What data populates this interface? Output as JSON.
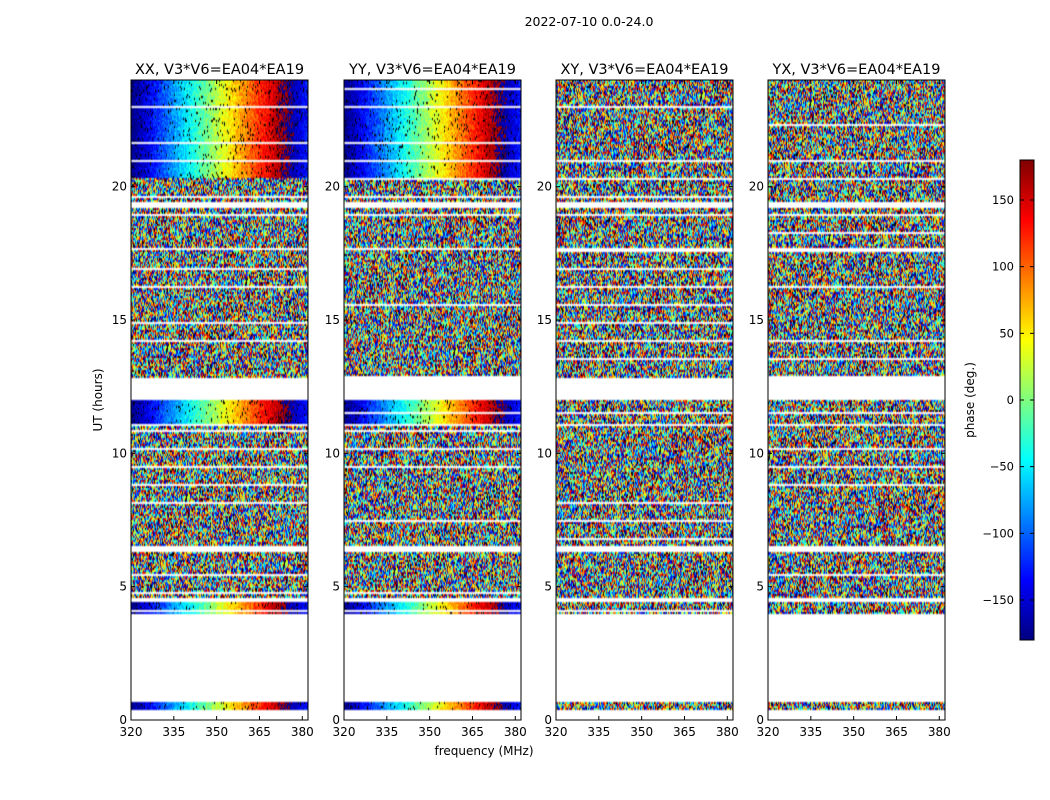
{
  "figure_title": "2022-07-10 0.0-24.0",
  "chart_data": {
    "type": "heatmap",
    "suptitle": "2022-07-10 0.0-24.0",
    "xlabel": "frequency (MHz)",
    "ylabel": "UT (hours)",
    "xlim": [
      320,
      382
    ],
    "ylim": [
      0,
      24
    ],
    "x_ticks": [
      320,
      335,
      350,
      365,
      380
    ],
    "y_ticks": [
      0,
      5,
      10,
      15,
      20
    ],
    "colorbar": {
      "label": "phase (deg.)",
      "vmin": -180,
      "vmax": 180,
      "ticks": [
        -150,
        -100,
        -50,
        0,
        50,
        100,
        150
      ],
      "tick_labels": [
        "−150",
        "−100",
        "−50",
        "0",
        "50",
        "100",
        "150"
      ],
      "colormap": [
        "#00007f",
        "#0000ff",
        "#007fff",
        "#00ffff",
        "#7fff7f",
        "#ffff00",
        "#ff7f00",
        "#ff0000",
        "#7f0000"
      ]
    },
    "data_hour_blocks": [
      [
        0.4,
        0.7
      ],
      [
        4.0,
        4.4
      ],
      [
        4.6,
        6.3
      ],
      [
        6.5,
        11.0
      ],
      [
        11.1,
        12.0
      ],
      [
        12.8,
        17.6
      ],
      [
        17.7,
        19.2
      ],
      [
        19.4,
        20.9
      ],
      [
        21.0,
        24.0
      ]
    ],
    "panels": [
      {
        "title": "XX, V3*V6=EA04*EA19",
        "polarization": "XX",
        "structured": true
      },
      {
        "title": "YY, V3*V6=EA04*EA19",
        "polarization": "YY",
        "structured": true
      },
      {
        "title": "XY, V3*V6=EA04*EA19",
        "polarization": "XY",
        "structured": false
      },
      {
        "title": "YX, V3*V6=EA04*EA19",
        "polarization": "YX",
        "structured": false
      }
    ]
  }
}
